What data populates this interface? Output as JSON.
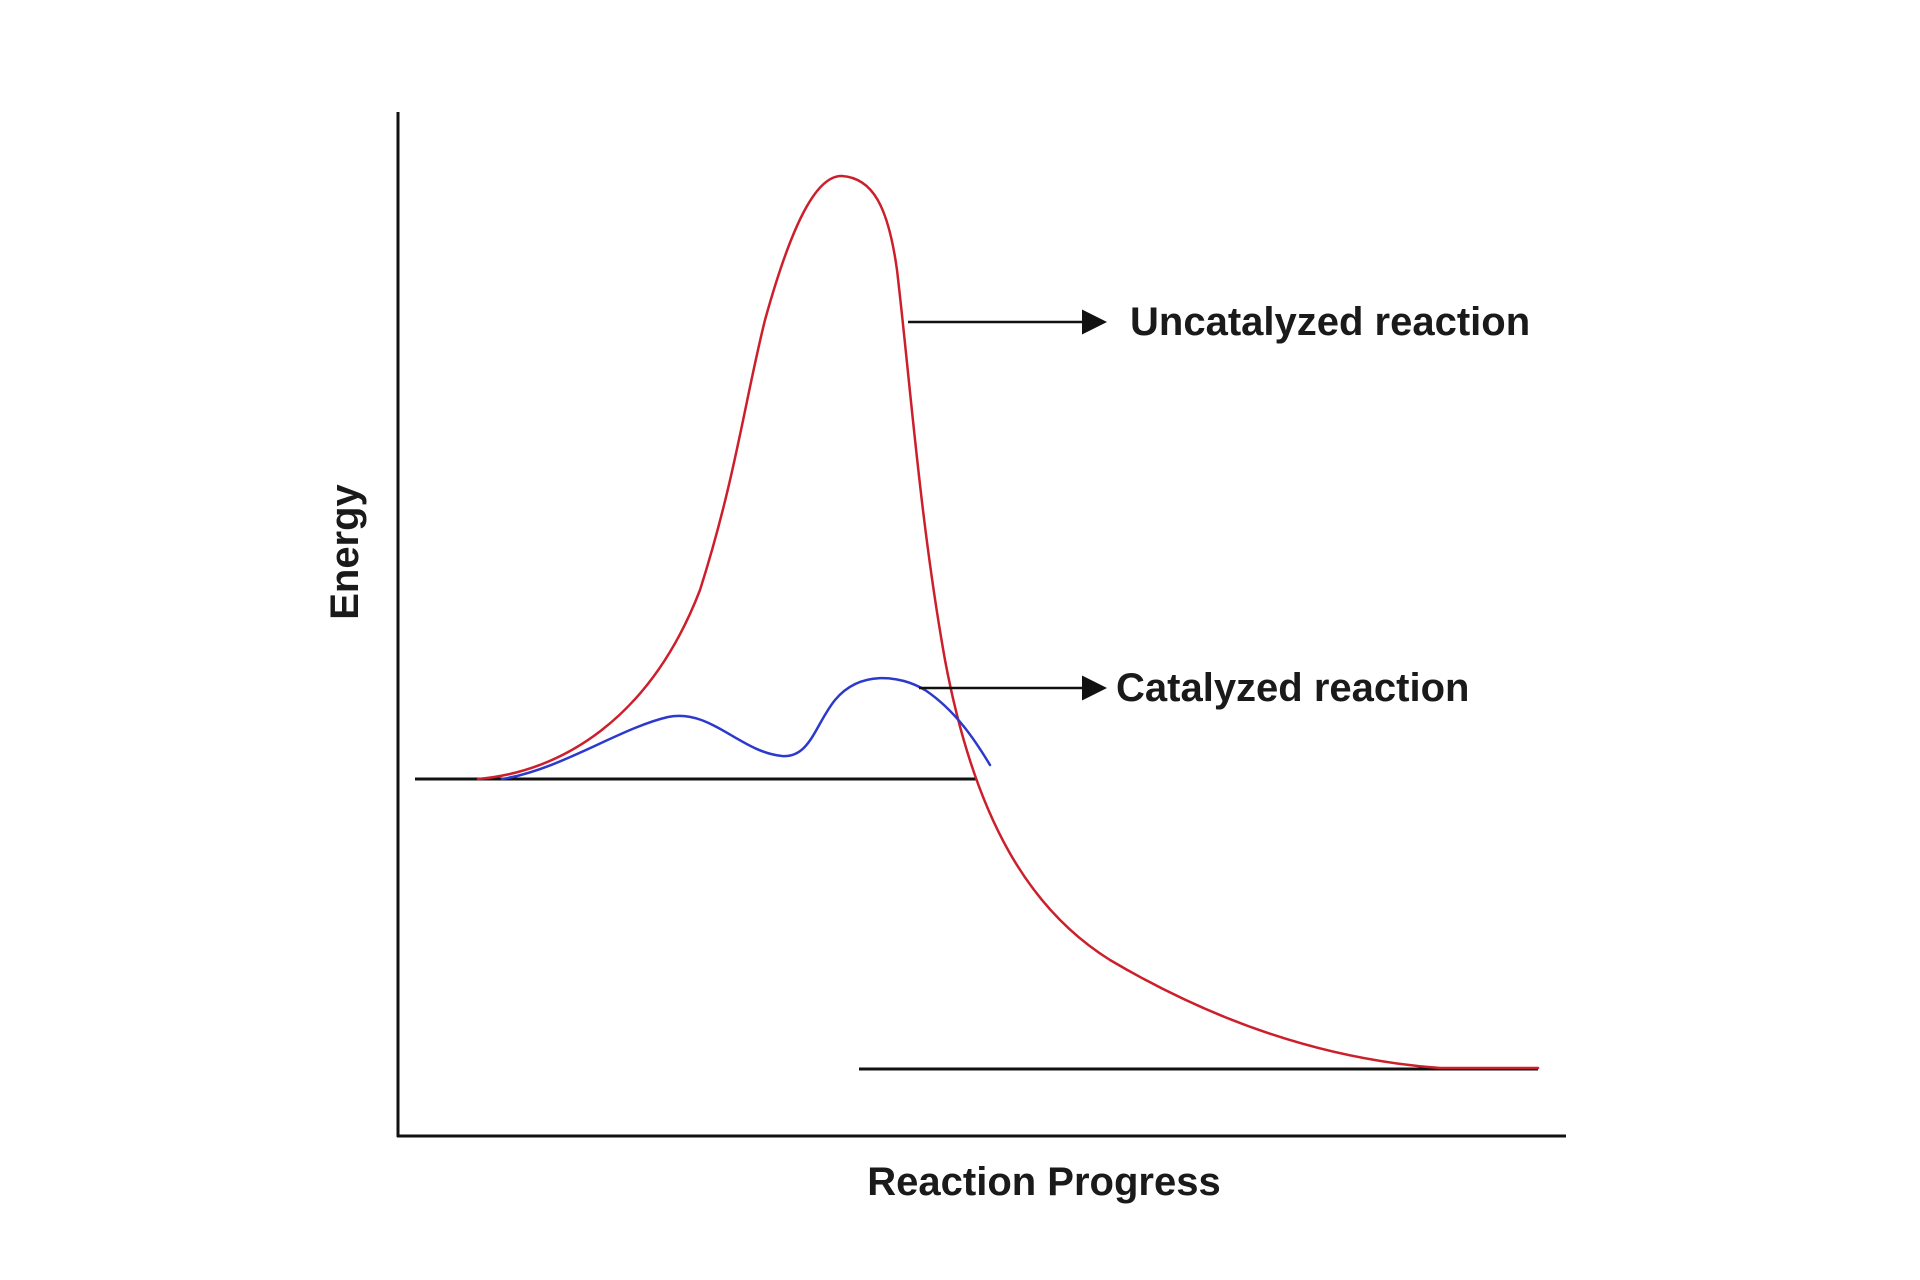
{
  "axes": {
    "y_label": "Energy",
    "x_label": "Reaction Progress"
  },
  "callouts": {
    "uncatalyzed": "Uncatalyzed reaction",
    "catalyzed": "Catalyzed reaction"
  },
  "colors": {
    "uncatalyzed": "#cc1f2b",
    "catalyzed": "#2b39cc",
    "axis": "#111111",
    "level": "#111111"
  }
}
